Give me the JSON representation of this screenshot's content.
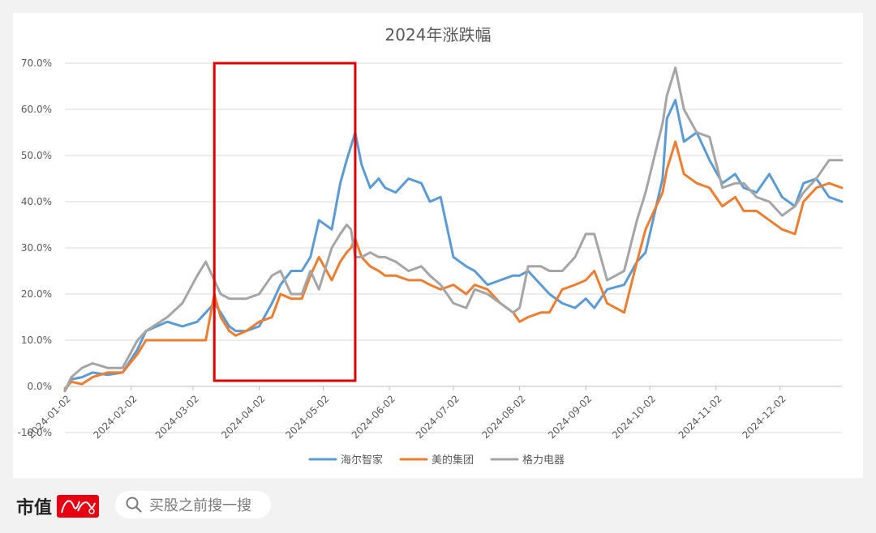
{
  "chart_data": {
    "type": "line",
    "title": "2024年涨跌幅",
    "ylim": [
      -0.1,
      0.7
    ],
    "y_ticks": [
      "-10.0%",
      "0.0%",
      "10.0%",
      "20.0%",
      "30.0%",
      "40.0%",
      "50.0%",
      "60.0%",
      "70.0%"
    ],
    "x_ticks": [
      "2024-01-02",
      "2024-02-02",
      "2024-03-02",
      "2024-04-02",
      "2024-05-02",
      "2024-06-02",
      "2024-07-02",
      "2024-08-02",
      "2024-09-02",
      "2024-10-02",
      "2024-11-02",
      "2024-12-02"
    ],
    "xlim": [
      "2024-01-02",
      "2024-12-31"
    ],
    "grid": "horizontal",
    "legend_position": "bottom",
    "highlight_box": {
      "x_start": "2024-03-12",
      "x_end": "2024-05-17",
      "color": "#e00000"
    },
    "series": [
      {
        "name": "海尔智家",
        "color": "#5b9bd5",
        "x": [
          "2024-01-02",
          "2024-01-05",
          "2024-01-10",
          "2024-01-15",
          "2024-01-22",
          "2024-01-29",
          "2024-02-05",
          "2024-02-09",
          "2024-02-19",
          "2024-02-26",
          "2024-03-04",
          "2024-03-08",
          "2024-03-12",
          "2024-03-15",
          "2024-03-19",
          "2024-03-22",
          "2024-03-27",
          "2024-04-02",
          "2024-04-08",
          "2024-04-12",
          "2024-04-17",
          "2024-04-22",
          "2024-04-26",
          "2024-04-30",
          "2024-05-06",
          "2024-05-10",
          "2024-05-13",
          "2024-05-15",
          "2024-05-17",
          "2024-05-20",
          "2024-05-24",
          "2024-05-28",
          "2024-05-31",
          "2024-06-05",
          "2024-06-11",
          "2024-06-17",
          "2024-06-21",
          "2024-06-26",
          "2024-07-02",
          "2024-07-08",
          "2024-07-12",
          "2024-07-18",
          "2024-07-24",
          "2024-07-30",
          "2024-08-02",
          "2024-08-06",
          "2024-08-12",
          "2024-08-16",
          "2024-08-22",
          "2024-08-28",
          "2024-09-02",
          "2024-09-06",
          "2024-09-12",
          "2024-09-20",
          "2024-09-26",
          "2024-09-30",
          "2024-10-08",
          "2024-10-10",
          "2024-10-14",
          "2024-10-18",
          "2024-10-24",
          "2024-10-30",
          "2024-11-05",
          "2024-11-11",
          "2024-11-15",
          "2024-11-21",
          "2024-11-27",
          "2024-12-03",
          "2024-12-09",
          "2024-12-13",
          "2024-12-19",
          "2024-12-25",
          "2024-12-31"
        ],
        "values": [
          -0.01,
          0.015,
          0.02,
          0.03,
          0.025,
          0.03,
          0.08,
          0.12,
          0.14,
          0.13,
          0.14,
          0.16,
          0.18,
          0.16,
          0.13,
          0.12,
          0.12,
          0.13,
          0.18,
          0.22,
          0.25,
          0.25,
          0.28,
          0.36,
          0.34,
          0.44,
          0.49,
          0.52,
          0.55,
          0.48,
          0.43,
          0.45,
          0.43,
          0.42,
          0.45,
          0.44,
          0.4,
          0.41,
          0.28,
          0.26,
          0.25,
          0.22,
          0.23,
          0.24,
          0.24,
          0.25,
          0.22,
          0.2,
          0.18,
          0.17,
          0.19,
          0.17,
          0.21,
          0.22,
          0.27,
          0.29,
          0.45,
          0.58,
          0.62,
          0.53,
          0.55,
          0.49,
          0.44,
          0.46,
          0.43,
          0.42,
          0.46,
          0.41,
          0.39,
          0.44,
          0.45,
          0.41,
          0.4
        ]
      },
      {
        "name": "美的集团",
        "color": "#ed7d31",
        "x": [
          "2024-01-02",
          "2024-01-05",
          "2024-01-10",
          "2024-01-15",
          "2024-01-22",
          "2024-01-29",
          "2024-02-05",
          "2024-02-09",
          "2024-02-19",
          "2024-02-26",
          "2024-03-04",
          "2024-03-08",
          "2024-03-12",
          "2024-03-15",
          "2024-03-19",
          "2024-03-22",
          "2024-03-27",
          "2024-04-02",
          "2024-04-08",
          "2024-04-12",
          "2024-04-17",
          "2024-04-22",
          "2024-04-26",
          "2024-04-30",
          "2024-05-06",
          "2024-05-10",
          "2024-05-13",
          "2024-05-15",
          "2024-05-17",
          "2024-05-20",
          "2024-05-24",
          "2024-05-28",
          "2024-05-31",
          "2024-06-05",
          "2024-06-11",
          "2024-06-17",
          "2024-06-21",
          "2024-06-26",
          "2024-07-02",
          "2024-07-08",
          "2024-07-12",
          "2024-07-18",
          "2024-07-24",
          "2024-07-30",
          "2024-08-02",
          "2024-08-06",
          "2024-08-12",
          "2024-08-16",
          "2024-08-22",
          "2024-08-28",
          "2024-09-02",
          "2024-09-06",
          "2024-09-12",
          "2024-09-20",
          "2024-09-26",
          "2024-09-30",
          "2024-10-08",
          "2024-10-10",
          "2024-10-14",
          "2024-10-18",
          "2024-10-24",
          "2024-10-30",
          "2024-11-05",
          "2024-11-11",
          "2024-11-15",
          "2024-11-21",
          "2024-11-27",
          "2024-12-03",
          "2024-12-09",
          "2024-12-13",
          "2024-12-19",
          "2024-12-25",
          "2024-12-31"
        ],
        "values": [
          -0.005,
          0.01,
          0.005,
          0.02,
          0.03,
          0.03,
          0.07,
          0.1,
          0.1,
          0.1,
          0.1,
          0.1,
          0.2,
          0.15,
          0.12,
          0.11,
          0.12,
          0.14,
          0.15,
          0.2,
          0.19,
          0.19,
          0.24,
          0.28,
          0.23,
          0.27,
          0.29,
          0.3,
          0.32,
          0.28,
          0.26,
          0.25,
          0.24,
          0.24,
          0.23,
          0.23,
          0.22,
          0.21,
          0.22,
          0.2,
          0.22,
          0.21,
          0.18,
          0.16,
          0.14,
          0.15,
          0.16,
          0.16,
          0.21,
          0.22,
          0.23,
          0.25,
          0.18,
          0.16,
          0.27,
          0.34,
          0.42,
          0.47,
          0.53,
          0.46,
          0.44,
          0.43,
          0.39,
          0.41,
          0.38,
          0.38,
          0.36,
          0.34,
          0.33,
          0.4,
          0.43,
          0.44,
          0.43
        ]
      },
      {
        "name": "格力电器",
        "color": "#a5a5a5",
        "x": [
          "2024-01-02",
          "2024-01-05",
          "2024-01-10",
          "2024-01-15",
          "2024-01-22",
          "2024-01-29",
          "2024-02-05",
          "2024-02-09",
          "2024-02-19",
          "2024-02-26",
          "2024-03-04",
          "2024-03-08",
          "2024-03-12",
          "2024-03-15",
          "2024-03-19",
          "2024-03-22",
          "2024-03-27",
          "2024-04-02",
          "2024-04-08",
          "2024-04-12",
          "2024-04-17",
          "2024-04-22",
          "2024-04-26",
          "2024-04-30",
          "2024-05-06",
          "2024-05-10",
          "2024-05-13",
          "2024-05-15",
          "2024-05-17",
          "2024-05-20",
          "2024-05-24",
          "2024-05-28",
          "2024-05-31",
          "2024-06-05",
          "2024-06-11",
          "2024-06-17",
          "2024-06-21",
          "2024-06-26",
          "2024-07-02",
          "2024-07-08",
          "2024-07-12",
          "2024-07-18",
          "2024-07-24",
          "2024-07-30",
          "2024-08-02",
          "2024-08-06",
          "2024-08-12",
          "2024-08-16",
          "2024-08-22",
          "2024-08-28",
          "2024-09-02",
          "2024-09-06",
          "2024-09-12",
          "2024-09-20",
          "2024-09-26",
          "2024-09-30",
          "2024-10-08",
          "2024-10-10",
          "2024-10-14",
          "2024-10-18",
          "2024-10-24",
          "2024-10-30",
          "2024-11-05",
          "2024-11-11",
          "2024-11-15",
          "2024-11-21",
          "2024-11-27",
          "2024-12-03",
          "2024-12-09",
          "2024-12-13",
          "2024-12-19",
          "2024-12-25",
          "2024-12-31"
        ],
        "values": [
          -0.01,
          0.02,
          0.04,
          0.05,
          0.04,
          0.04,
          0.1,
          0.12,
          0.15,
          0.18,
          0.24,
          0.27,
          0.23,
          0.2,
          0.19,
          0.19,
          0.19,
          0.2,
          0.24,
          0.25,
          0.2,
          0.2,
          0.25,
          0.21,
          0.3,
          0.33,
          0.35,
          0.34,
          0.28,
          0.28,
          0.29,
          0.28,
          0.28,
          0.27,
          0.25,
          0.26,
          0.24,
          0.22,
          0.18,
          0.17,
          0.21,
          0.2,
          0.18,
          0.16,
          0.17,
          0.26,
          0.26,
          0.25,
          0.25,
          0.28,
          0.33,
          0.33,
          0.23,
          0.25,
          0.36,
          0.42,
          0.57,
          0.63,
          0.69,
          0.6,
          0.55,
          0.54,
          0.43,
          0.44,
          0.44,
          0.41,
          0.4,
          0.37,
          0.39,
          0.42,
          0.45,
          0.49,
          0.49
        ]
      }
    ]
  },
  "footer": {
    "brand": "市值",
    "search_placeholder": "买股之前搜一搜"
  }
}
